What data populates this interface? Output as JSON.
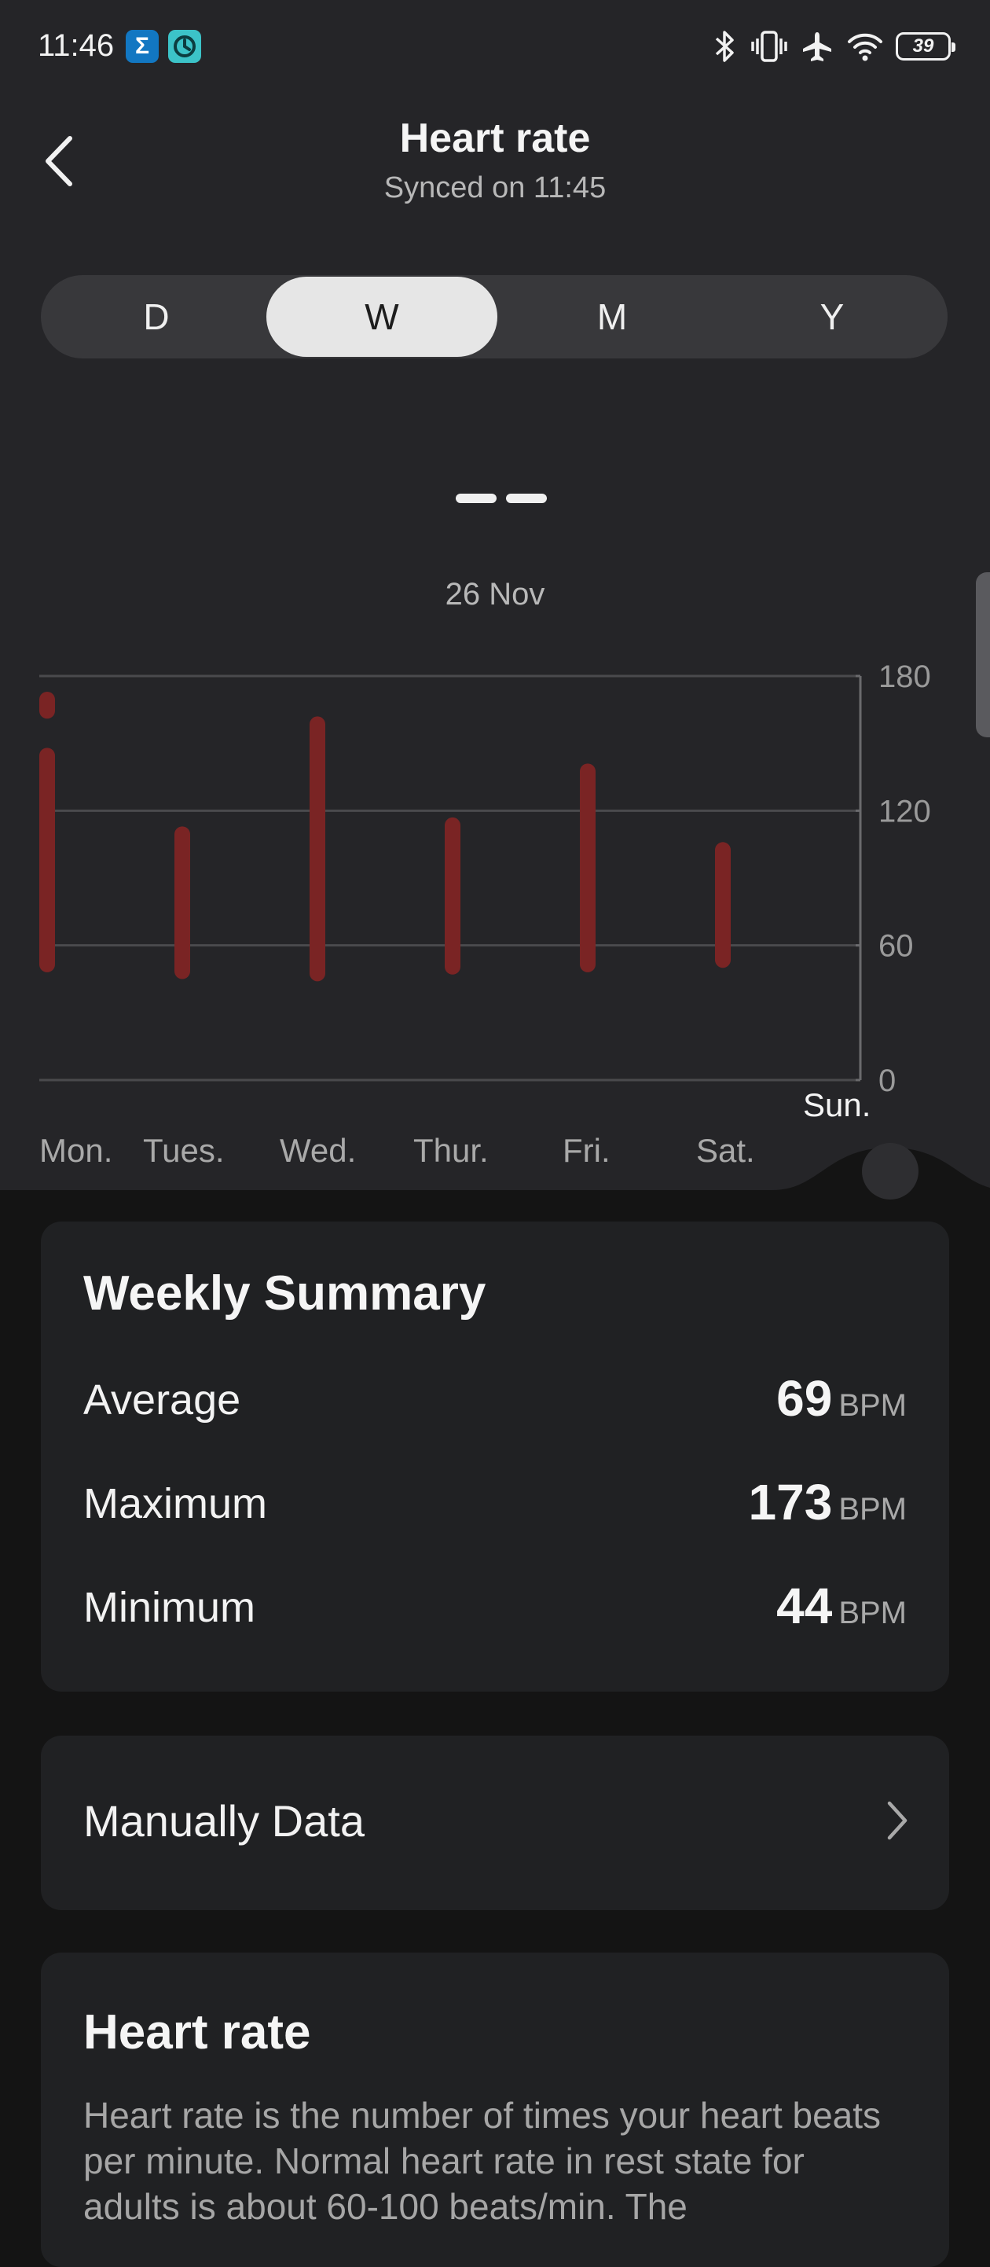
{
  "status_bar": {
    "time": "11:46",
    "app_icons": [
      "sigma-app-icon",
      "clock-app-icon"
    ],
    "badge_sigma": "Σ",
    "battery": "39",
    "icons": [
      "bluetooth-icon",
      "vibrate-icon",
      "airplane-icon",
      "wifi-icon",
      "battery-icon"
    ]
  },
  "header": {
    "title": "Heart rate",
    "sync_text": "Synced on 11:45",
    "back_icon": "chevron-left-icon"
  },
  "period_tabs": [
    {
      "label": "D",
      "active": false
    },
    {
      "label": "W",
      "active": true
    },
    {
      "label": "M",
      "active": false
    },
    {
      "label": "Y",
      "active": false
    }
  ],
  "selected_date": "26 Nov",
  "chart_data": {
    "type": "bar",
    "subtype": "range",
    "categories": [
      "Mon.",
      "Tues.",
      "Wed.",
      "Thur.",
      "Fri.",
      "Sat.",
      "Sun."
    ],
    "selected_category": "Sun.",
    "series": [
      {
        "ranges": [
          [
            [
              48,
              148
            ],
            [
              161,
              173
            ]
          ],
          [
            [
              45,
              113
            ]
          ],
          [
            [
              44,
              162
            ]
          ],
          [
            [
              47,
              117
            ]
          ],
          [
            [
              48,
              141
            ]
          ],
          [
            [
              50,
              106
            ]
          ],
          []
        ]
      }
    ],
    "yticks": [
      0,
      60,
      120,
      180
    ],
    "ylim": [
      0,
      180
    ],
    "grid": true,
    "bar_color": "#7a2424"
  },
  "weekly_summary": {
    "title": "Weekly Summary",
    "rows": [
      {
        "label": "Average",
        "value": "69",
        "unit": "BPM"
      },
      {
        "label": "Maximum",
        "value": "173",
        "unit": "BPM"
      },
      {
        "label": "Minimum",
        "value": "44",
        "unit": "BPM"
      }
    ]
  },
  "manual_data": {
    "label": "Manually Data",
    "icon": "chevron-right-icon"
  },
  "info": {
    "title": "Heart rate",
    "text": "Heart rate is the number of times your heart beats per minute. Normal heart rate in rest state for adults is about 60-100 beats/min. The"
  }
}
